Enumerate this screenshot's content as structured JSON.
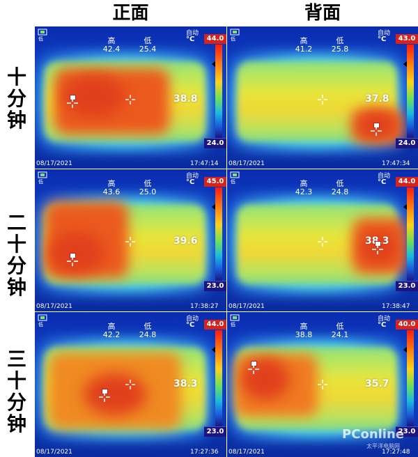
{
  "headers": {
    "front": "正面",
    "back": "背面"
  },
  "rows": [
    "十分钟",
    "二十分钟",
    "三十分钟"
  ],
  "panel_labels": {
    "high": "高",
    "low": "低",
    "auto": "自动",
    "unit": "°C",
    "icon_sub": "低"
  },
  "panels": [
    {
      "side": "front",
      "row": "十分钟",
      "high": "42.4",
      "low": "25.4",
      "scale_max": "44.0",
      "scale_min": "24.0",
      "center": "38.8",
      "date": "08/17/2021",
      "time": "17:47:14"
    },
    {
      "side": "back",
      "row": "十分钟",
      "high": "41.2",
      "low": "25.8",
      "scale_max": "43.0",
      "scale_min": "24.0",
      "center": "37.8",
      "date": "08/17/2021",
      "time": "17:47:34"
    },
    {
      "side": "front",
      "row": "二十分钟",
      "high": "43.6",
      "low": "25.0",
      "scale_max": "45.0",
      "scale_min": "23.0",
      "center": "39.6",
      "date": "08/17/2021",
      "time": "17:38:27"
    },
    {
      "side": "back",
      "row": "二十分钟",
      "high": "42.3",
      "low": "24.8",
      "scale_max": "44.0",
      "scale_min": "23.0",
      "center": "38.3",
      "date": "08/17/2021",
      "time": "17:38:47"
    },
    {
      "side": "front",
      "row": "三十分钟",
      "high": "42.2",
      "low": "24.8",
      "scale_max": "44.0",
      "scale_min": "23.0",
      "center": "38.3",
      "date": "08/17/2021",
      "time": "17:27:36"
    },
    {
      "side": "back",
      "row": "三十分钟",
      "high": "38.8",
      "low": "24.1",
      "scale_max": "40.0",
      "scale_min": "23.0",
      "center": "35.7",
      "date": "08/17/2021",
      "time": "17:27:48"
    }
  ],
  "watermark": {
    "brand": "PConline",
    "sub": "太平洋电脑网"
  },
  "palette": {
    "hot": "#e8431a",
    "warm": "#f08a22",
    "mid": "#e8e43a",
    "cool": "#4bd0f0",
    "cold": "#0b2fb4",
    "max_box": "#d8231d",
    "min_box": "#1c1580"
  }
}
